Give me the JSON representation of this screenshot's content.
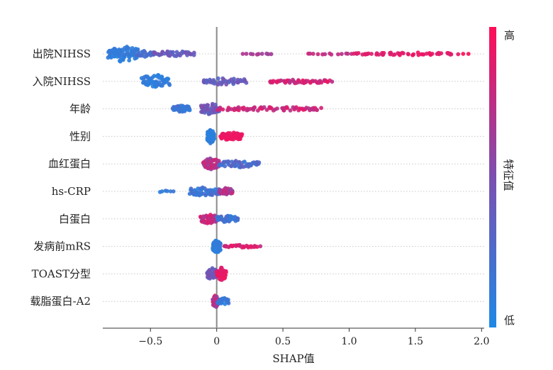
{
  "chart_data": {
    "type": "scatter",
    "subtype": "shap-beeswarm",
    "xlabel": "SHAP值",
    "xlim": [
      -0.86,
      2.02
    ],
    "xticks": [
      -0.5,
      0,
      0.5,
      1.0,
      1.5,
      2.0
    ],
    "xtick_labels": [
      "−0.5",
      "0",
      "0.5",
      "1.0",
      "1.5",
      "2.0"
    ],
    "zero_line": 0,
    "grid": "horizontal-dotted",
    "colorbar": {
      "label": "特征值",
      "high_label": "高",
      "low_label": "低",
      "low_color": "#1e88e5",
      "mid_color": "#7b4fb0",
      "high_color": "#ff0d57"
    },
    "features": [
      {
        "name": "出院NIHSS",
        "clusters": [
          {
            "x0": -0.82,
            "x1": -0.6,
            "lvl0": 0.05,
            "lvl1": 0.15,
            "n": 80,
            "h": 12
          },
          {
            "x0": -0.6,
            "x1": -0.48,
            "lvl0": 0.15,
            "lvl1": 0.3,
            "n": 22,
            "h": 5
          },
          {
            "x0": -0.48,
            "x1": -0.17,
            "lvl0": 0.3,
            "lvl1": 0.5,
            "n": 40,
            "h": 4
          },
          {
            "x0": 0.2,
            "x1": 0.42,
            "lvl0": 0.62,
            "lvl1": 0.7,
            "n": 10,
            "h": 1
          },
          {
            "x0": 0.68,
            "x1": 1.05,
            "lvl0": 0.72,
            "lvl1": 0.82,
            "n": 14,
            "h": 1
          },
          {
            "x0": 1.05,
            "x1": 1.8,
            "lvl0": 0.82,
            "lvl1": 0.96,
            "n": 55,
            "h": 2
          },
          {
            "x0": 1.86,
            "x1": 1.9,
            "lvl0": 0.98,
            "lvl1": 1.0,
            "n": 2,
            "h": 0
          }
        ]
      },
      {
        "name": "入院NIHSS",
        "clusters": [
          {
            "x0": -0.56,
            "x1": -0.36,
            "lvl0": 0.05,
            "lvl1": 0.15,
            "n": 60,
            "h": 10
          },
          {
            "x0": -0.1,
            "x1": 0.22,
            "lvl0": 0.28,
            "lvl1": 0.5,
            "n": 45,
            "h": 5
          },
          {
            "x0": 0.4,
            "x1": 0.86,
            "lvl0": 0.72,
            "lvl1": 0.95,
            "n": 60,
            "h": 3
          }
        ]
      },
      {
        "name": "年龄",
        "clusters": [
          {
            "x0": -0.33,
            "x1": -0.2,
            "lvl0": 0.08,
            "lvl1": 0.25,
            "n": 40,
            "h": 5
          },
          {
            "x0": -0.12,
            "x1": 0.02,
            "lvl0": 0.3,
            "lvl1": 0.55,
            "n": 45,
            "h": 8
          },
          {
            "x0": 0.02,
            "x1": 0.78,
            "lvl0": 0.7,
            "lvl1": 0.92,
            "n": 75,
            "h": 3
          }
        ]
      },
      {
        "name": "性别",
        "clusters": [
          {
            "x0": -0.07,
            "x1": -0.02,
            "lvl0": 0.03,
            "lvl1": 0.12,
            "n": 70,
            "h": 10
          },
          {
            "x0": 0.03,
            "x1": 0.19,
            "lvl0": 0.9,
            "lvl1": 0.97,
            "n": 75,
            "h": 6
          }
        ]
      },
      {
        "name": "血红蛋白",
        "clusters": [
          {
            "x0": -0.1,
            "x1": 0.02,
            "lvl0": 0.55,
            "lvl1": 0.88,
            "n": 55,
            "h": 8
          },
          {
            "x0": 0.02,
            "x1": 0.32,
            "lvl0": 0.08,
            "lvl1": 0.4,
            "n": 55,
            "h": 5
          }
        ]
      },
      {
        "name": "hs-CRP",
        "clusters": [
          {
            "x0": -0.43,
            "x1": -0.33,
            "lvl0": 0.05,
            "lvl1": 0.15,
            "n": 6,
            "h": 2
          },
          {
            "x0": -0.2,
            "x1": 0.02,
            "lvl0": 0.05,
            "lvl1": 0.3,
            "n": 55,
            "h": 7
          },
          {
            "x0": 0.02,
            "x1": 0.12,
            "lvl0": 0.55,
            "lvl1": 0.85,
            "n": 35,
            "h": 5
          }
        ]
      },
      {
        "name": "白蛋白",
        "clusters": [
          {
            "x0": -0.12,
            "x1": 0.0,
            "lvl0": 0.65,
            "lvl1": 0.95,
            "n": 50,
            "h": 7
          },
          {
            "x0": 0.0,
            "x1": 0.16,
            "lvl0": 0.05,
            "lvl1": 0.3,
            "n": 45,
            "h": 5
          }
        ]
      },
      {
        "name": "发病前mRS",
        "clusters": [
          {
            "x0": -0.03,
            "x1": 0.03,
            "lvl0": 0.05,
            "lvl1": 0.15,
            "n": 55,
            "h": 10
          },
          {
            "x0": 0.05,
            "x1": 0.32,
            "lvl0": 0.75,
            "lvl1": 0.95,
            "n": 30,
            "h": 2
          }
        ]
      },
      {
        "name": "TOAST分型",
        "clusters": [
          {
            "x0": -0.07,
            "x1": 0.0,
            "lvl0": 0.3,
            "lvl1": 0.55,
            "n": 45,
            "h": 9
          },
          {
            "x0": 0.0,
            "x1": 0.07,
            "lvl0": 0.85,
            "lvl1": 0.97,
            "n": 45,
            "h": 9
          }
        ]
      },
      {
        "name": "载脂蛋白-A2",
        "clusters": [
          {
            "x0": -0.03,
            "x1": 0.01,
            "lvl0": 0.5,
            "lvl1": 0.9,
            "n": 45,
            "h": 9
          },
          {
            "x0": 0.01,
            "x1": 0.09,
            "lvl0": 0.05,
            "lvl1": 0.2,
            "n": 30,
            "h": 5
          }
        ]
      }
    ]
  }
}
